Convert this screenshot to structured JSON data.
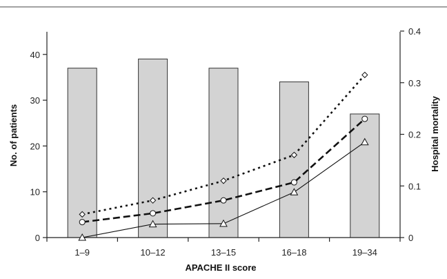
{
  "chart_data": {
    "type": "bar",
    "categories": [
      "1–9",
      "10–12",
      "13–15",
      "16–18",
      "19–34"
    ],
    "xlabel": "APACHE II score",
    "ylabel": "No. of patients",
    "y2label": "Hospital mortality",
    "ylim": [
      0,
      45
    ],
    "y2lim": [
      0,
      0.4
    ],
    "yticks": [
      "0",
      "10",
      "20",
      "30",
      "40"
    ],
    "y2ticks": [
      "0",
      "0.1",
      "0.2",
      "0.3",
      "0.4"
    ],
    "grid": false,
    "bar_color": "#d3d3d3",
    "series": [
      {
        "type": "bar",
        "axis": "left",
        "values": [
          37,
          39,
          37,
          34,
          27
        ]
      },
      {
        "type": "line",
        "axis": "right",
        "style": "dotted",
        "marker": "diamond",
        "values": [
          0.045,
          0.072,
          0.11,
          0.16,
          0.315
        ]
      },
      {
        "type": "line",
        "axis": "right",
        "style": "dashed",
        "marker": "circle",
        "values": [
          0.03,
          0.047,
          0.072,
          0.107,
          0.23
        ]
      },
      {
        "type": "line",
        "axis": "right",
        "style": "solid",
        "marker": "triangle",
        "values": [
          0.0,
          0.026,
          0.027,
          0.088,
          0.185
        ]
      }
    ]
  }
}
